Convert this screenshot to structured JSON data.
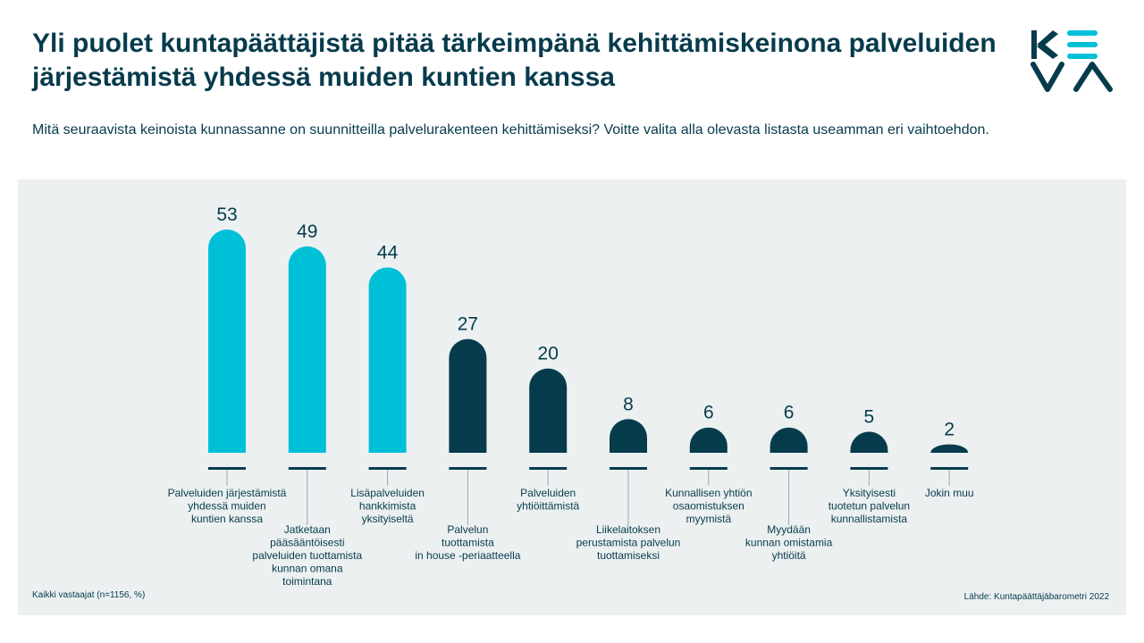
{
  "title": "Yli puolet kuntapäättäjistä pitää tärkeimpänä kehittämiskeinona palveluiden järjestämistä yhdessä muiden kuntien kanssa",
  "subtitle": "Mitä seuraavista keinoista kunnassanne on suunnitteilla palvelurakenteen kehittämiseksi? Voitte valita alla olevasta listasta useamman eri vaihtoehdon.",
  "logo": {
    "text": "KEVA",
    "icon": "keva-logo"
  },
  "footnote": "Kaikki vastaajat (n=1156, %)",
  "source": "Lähde: Kuntapäättäjäbarometri 2022",
  "colors": {
    "highlight": "#00c0d8",
    "dark": "#063b4c",
    "panel": "#ecf0f1"
  },
  "chart_data": {
    "type": "bar",
    "categories": [
      "Palveluiden järjestämistä yhdessä muiden kuntien kanssa",
      "Jatketaan pääsääntöisesti palveluiden tuottamista kunnan omana toimintana",
      "Lisäpalveluiden hankkimista yksityiseltä",
      "Palvelun tuottamista in house -periaatteella",
      "Palveluiden yhtiöittämistä",
      "Liikelaitoksen perustamista palvelun tuottamiseksi",
      "Kunnallisen yhtiön osaomistuksen myymistä",
      "Myydään kunnan omistamia yhtiöitä",
      "Yksityisesti tuotetun palvelun kunnallistamista",
      "Jokin muu"
    ],
    "label_lines": [
      [
        "Palveluiden järjestämistä",
        "yhdessä muiden",
        "kuntien kanssa"
      ],
      [
        "Jatketaan",
        "pääsääntöisesti",
        "palveluiden tuottamista",
        "kunnan omana",
        "toimintana"
      ],
      [
        "Lisäpalveluiden",
        "hankkimista",
        "yksityiseltä"
      ],
      [
        "Palvelun",
        "tuottamista",
        "in house -periaatteella"
      ],
      [
        "Palveluiden",
        "yhtiöittämistä"
      ],
      [
        "Liikelaitoksen",
        "perustamista palvelun",
        "tuottamiseksi"
      ],
      [
        "Kunnallisen yhtiön",
        "osaomistuksen",
        "myymistä"
      ],
      [
        "Myydään",
        "kunnan omistamia",
        "yhtiöitä"
      ],
      [
        "Yksityisesti",
        "tuotetun palvelun",
        "kunnallistamista"
      ],
      [
        "Jokin muu"
      ]
    ],
    "label_position": [
      "upper",
      "lower",
      "upper",
      "lower",
      "upper",
      "lower",
      "upper",
      "lower",
      "upper",
      "upper"
    ],
    "values": [
      53,
      49,
      44,
      27,
      20,
      8,
      6,
      6,
      5,
      2
    ],
    "highlight": [
      true,
      true,
      true,
      false,
      false,
      false,
      false,
      false,
      false,
      false
    ],
    "unit": "%",
    "ylim": [
      0,
      53
    ],
    "grid": false,
    "legend": "none"
  }
}
